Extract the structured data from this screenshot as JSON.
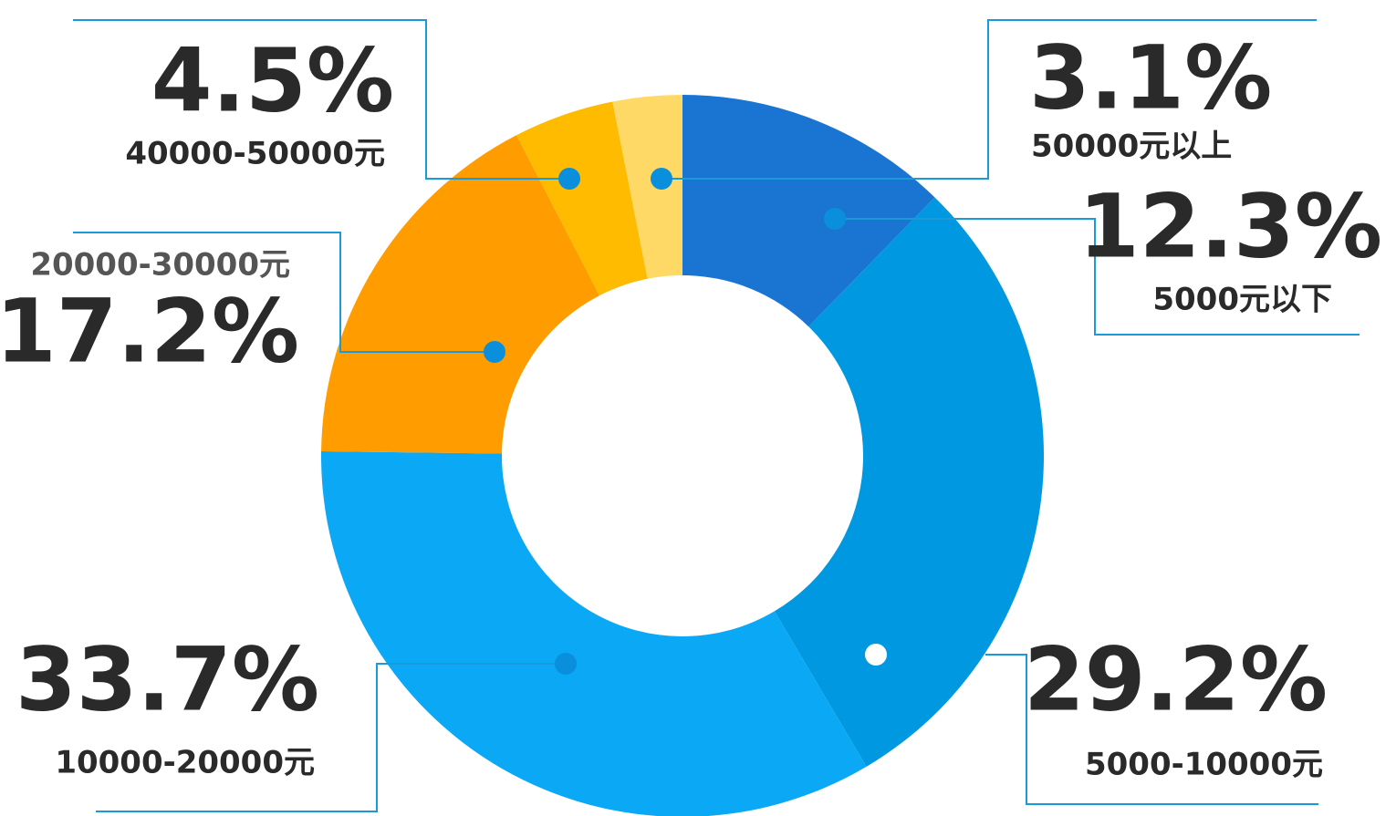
{
  "chart_data": {
    "type": "pie",
    "categories": [
      "5000元以下",
      "5000-10000元",
      "10000-20000元",
      "20000-30000元",
      "40000-50000元",
      "50000元以上"
    ],
    "values": [
      12.3,
      29.2,
      33.7,
      17.2,
      4.5,
      3.1
    ],
    "value_labels": [
      "12.3%",
      "29.2%",
      "33.7%",
      "17.2%",
      "4.5%",
      "3.1%"
    ],
    "colors": [
      "#1a75d2",
      "#0098e0",
      "#0aa8f5",
      "#ff9c00",
      "#ffbb00",
      "#ffd966"
    ]
  }
}
